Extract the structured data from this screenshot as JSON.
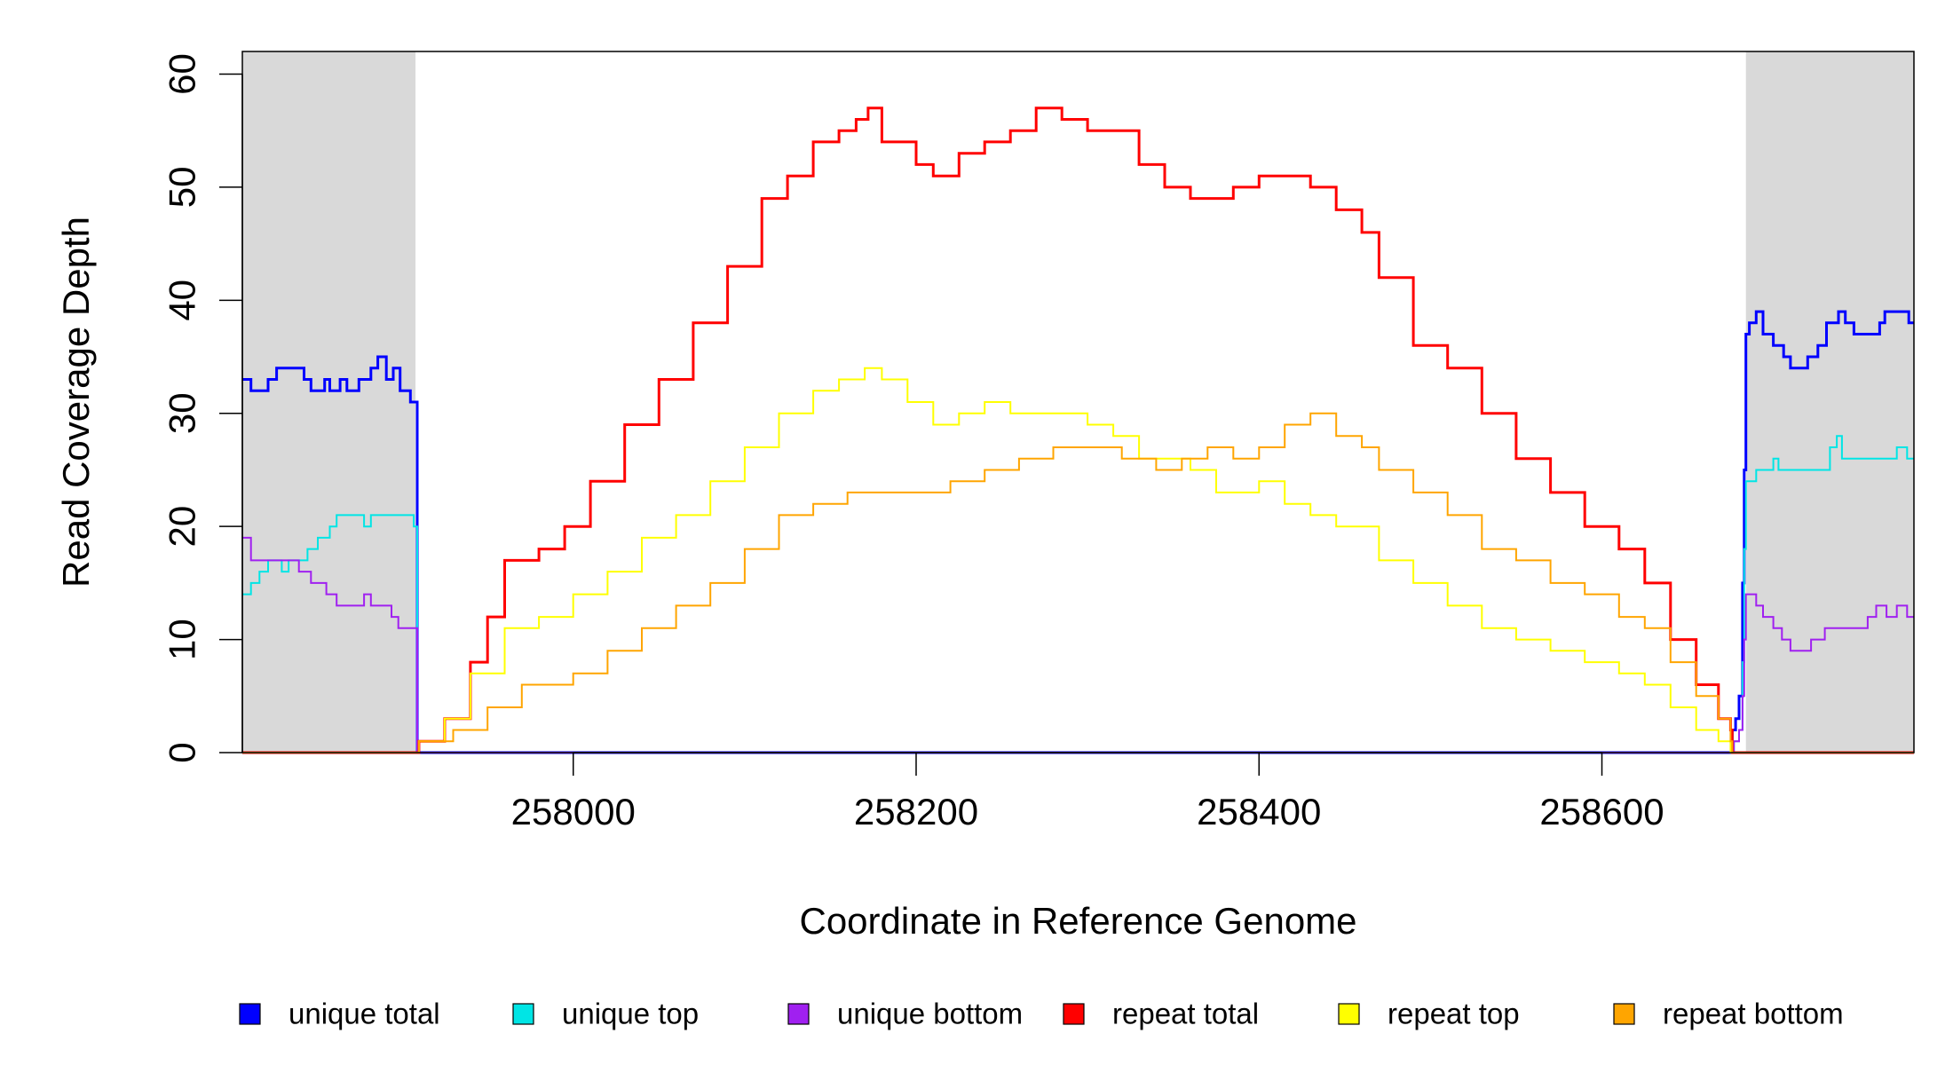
{
  "chart_data": {
    "type": "line",
    "title": "",
    "xlabel": "Coordinate in Reference Genome",
    "ylabel": "Read Coverage Depth",
    "xlim": [
      257807,
      258782
    ],
    "ylim": [
      0,
      62
    ],
    "x_ticks": [
      258000,
      258200,
      258400,
      258600
    ],
    "x_tick_labels": [
      "258000",
      "258200",
      "258400",
      "258600"
    ],
    "y_ticks": [
      0,
      10,
      20,
      30,
      40,
      50,
      60
    ],
    "y_tick_labels": [
      "0",
      "10",
      "20",
      "30",
      "40",
      "50",
      "60"
    ],
    "grid": false,
    "legend_position": "bottom",
    "shaded_regions": [
      {
        "from": 257807,
        "to": 257908,
        "color": "#d9d9d9"
      },
      {
        "from": 258684,
        "to": 258782,
        "color": "#d9d9d9"
      }
    ],
    "series": [
      {
        "name": "unique total",
        "color": "#0000ff",
        "width": 3,
        "points": [
          [
            257807,
            33
          ],
          [
            257812,
            32
          ],
          [
            257822,
            33
          ],
          [
            257827,
            34
          ],
          [
            257843,
            33
          ],
          [
            257847,
            32
          ],
          [
            257855,
            33
          ],
          [
            257858,
            32
          ],
          [
            257864,
            33
          ],
          [
            257868,
            32
          ],
          [
            257875,
            33
          ],
          [
            257882,
            34
          ],
          [
            257886,
            35
          ],
          [
            257891,
            33
          ],
          [
            257895,
            34
          ],
          [
            257899,
            32
          ],
          [
            257905,
            31
          ],
          [
            257908,
            31
          ],
          [
            257909,
            0
          ],
          [
            258675,
            0
          ],
          [
            258676,
            2
          ],
          [
            258678,
            3
          ],
          [
            258680,
            5
          ],
          [
            258682,
            15
          ],
          [
            258683,
            25
          ],
          [
            258684,
            37
          ],
          [
            258686,
            38
          ],
          [
            258690,
            39
          ],
          [
            258694,
            37
          ],
          [
            258700,
            36
          ],
          [
            258706,
            35
          ],
          [
            258710,
            34
          ],
          [
            258720,
            35
          ],
          [
            258726,
            36
          ],
          [
            258731,
            38
          ],
          [
            258738,
            39
          ],
          [
            258742,
            38
          ],
          [
            258747,
            37
          ],
          [
            258762,
            38
          ],
          [
            258765,
            39
          ],
          [
            258779,
            38
          ],
          [
            258782,
            38
          ]
        ]
      },
      {
        "name": "unique top",
        "color": "#00e5e5",
        "width": 2,
        "points": [
          [
            257807,
            14
          ],
          [
            257812,
            15
          ],
          [
            257817,
            16
          ],
          [
            257822,
            17
          ],
          [
            257830,
            16
          ],
          [
            257834,
            17
          ],
          [
            257840,
            17
          ],
          [
            257845,
            18
          ],
          [
            257851,
            19
          ],
          [
            257858,
            20
          ],
          [
            257862,
            21
          ],
          [
            257878,
            20
          ],
          [
            257882,
            21
          ],
          [
            257901,
            21
          ],
          [
            257907,
            20
          ],
          [
            257908,
            20
          ],
          [
            257909,
            0
          ],
          [
            258675,
            0
          ],
          [
            258677,
            1
          ],
          [
            258680,
            2
          ],
          [
            258682,
            8
          ],
          [
            258683,
            18
          ],
          [
            258684,
            24
          ],
          [
            258690,
            25
          ],
          [
            258700,
            26
          ],
          [
            258703,
            25
          ],
          [
            258733,
            27
          ],
          [
            258737,
            28
          ],
          [
            258740,
            26
          ],
          [
            258745,
            26
          ],
          [
            258772,
            27
          ],
          [
            258778,
            26
          ],
          [
            258782,
            26
          ]
        ]
      },
      {
        "name": "unique bottom",
        "color": "#a020f0",
        "width": 2,
        "points": [
          [
            257807,
            19
          ],
          [
            257812,
            17
          ],
          [
            257840,
            16
          ],
          [
            257847,
            15
          ],
          [
            257856,
            14
          ],
          [
            257862,
            13
          ],
          [
            257878,
            14
          ],
          [
            257882,
            13
          ],
          [
            257894,
            12
          ],
          [
            257898,
            11
          ],
          [
            257907,
            11
          ],
          [
            257908,
            11
          ],
          [
            257909,
            0
          ],
          [
            258675,
            0
          ],
          [
            258677,
            1
          ],
          [
            258680,
            2
          ],
          [
            258682,
            5
          ],
          [
            258683,
            10
          ],
          [
            258684,
            14
          ],
          [
            258690,
            13
          ],
          [
            258694,
            12
          ],
          [
            258700,
            11
          ],
          [
            258705,
            10
          ],
          [
            258710,
            9
          ],
          [
            258722,
            10
          ],
          [
            258730,
            11
          ],
          [
            258755,
            12
          ],
          [
            258760,
            13
          ],
          [
            258766,
            12
          ],
          [
            258772,
            13
          ],
          [
            258778,
            12
          ],
          [
            258782,
            12
          ]
        ]
      },
      {
        "name": "repeat total",
        "color": "#ff0000",
        "width": 3,
        "points": [
          [
            257807,
            0
          ],
          [
            257908,
            0
          ],
          [
            257910,
            1
          ],
          [
            257925,
            3
          ],
          [
            257940,
            8
          ],
          [
            257950,
            12
          ],
          [
            257960,
            17
          ],
          [
            257980,
            18
          ],
          [
            257995,
            20
          ],
          [
            258010,
            24
          ],
          [
            258030,
            29
          ],
          [
            258050,
            33
          ],
          [
            258070,
            38
          ],
          [
            258090,
            43
          ],
          [
            258110,
            49
          ],
          [
            258125,
            51
          ],
          [
            258140,
            54
          ],
          [
            258155,
            55
          ],
          [
            258165,
            56
          ],
          [
            258172,
            57
          ],
          [
            258180,
            54
          ],
          [
            258200,
            52
          ],
          [
            258210,
            51
          ],
          [
            258225,
            53
          ],
          [
            258240,
            54
          ],
          [
            258255,
            55
          ],
          [
            258270,
            57
          ],
          [
            258285,
            56
          ],
          [
            258300,
            55
          ],
          [
            258315,
            55
          ],
          [
            258330,
            52
          ],
          [
            258345,
            50
          ],
          [
            258360,
            49
          ],
          [
            258375,
            49
          ],
          [
            258385,
            50
          ],
          [
            258400,
            51
          ],
          [
            258415,
            51
          ],
          [
            258430,
            50
          ],
          [
            258445,
            48
          ],
          [
            258460,
            46
          ],
          [
            258470,
            42
          ],
          [
            258490,
            36
          ],
          [
            258510,
            34
          ],
          [
            258530,
            30
          ],
          [
            258550,
            26
          ],
          [
            258570,
            23
          ],
          [
            258590,
            20
          ],
          [
            258610,
            18
          ],
          [
            258625,
            15
          ],
          [
            258640,
            10
          ],
          [
            258655,
            6
          ],
          [
            258668,
            3
          ],
          [
            258675,
            2
          ],
          [
            258676,
            0
          ],
          [
            258782,
            0
          ]
        ]
      },
      {
        "name": "repeat top",
        "color": "#ffff00",
        "width": 2,
        "points": [
          [
            257807,
            0
          ],
          [
            257908,
            0
          ],
          [
            257910,
            1
          ],
          [
            257925,
            3
          ],
          [
            257940,
            7
          ],
          [
            257960,
            11
          ],
          [
            257980,
            12
          ],
          [
            258000,
            14
          ],
          [
            258020,
            16
          ],
          [
            258040,
            19
          ],
          [
            258060,
            21
          ],
          [
            258080,
            24
          ],
          [
            258100,
            27
          ],
          [
            258120,
            30
          ],
          [
            258140,
            32
          ],
          [
            258155,
            33
          ],
          [
            258170,
            34
          ],
          [
            258180,
            33
          ],
          [
            258195,
            31
          ],
          [
            258210,
            29
          ],
          [
            258225,
            30
          ],
          [
            258240,
            31
          ],
          [
            258255,
            30
          ],
          [
            258270,
            30
          ],
          [
            258285,
            30
          ],
          [
            258300,
            29
          ],
          [
            258315,
            28
          ],
          [
            258330,
            26
          ],
          [
            258345,
            26
          ],
          [
            258360,
            25
          ],
          [
            258375,
            23
          ],
          [
            258385,
            23
          ],
          [
            258400,
            24
          ],
          [
            258415,
            22
          ],
          [
            258430,
            21
          ],
          [
            258445,
            20
          ],
          [
            258460,
            20
          ],
          [
            258470,
            17
          ],
          [
            258490,
            15
          ],
          [
            258510,
            13
          ],
          [
            258530,
            11
          ],
          [
            258550,
            10
          ],
          [
            258570,
            9
          ],
          [
            258590,
            8
          ],
          [
            258610,
            7
          ],
          [
            258625,
            6
          ],
          [
            258640,
            4
          ],
          [
            258655,
            2
          ],
          [
            258668,
            1
          ],
          [
            258675,
            0
          ],
          [
            258782,
            0
          ]
        ]
      },
      {
        "name": "repeat bottom",
        "color": "#ffa500",
        "width": 2,
        "points": [
          [
            257807,
            0
          ],
          [
            257908,
            0
          ],
          [
            257910,
            1
          ],
          [
            257930,
            2
          ],
          [
            257950,
            4
          ],
          [
            257970,
            6
          ],
          [
            258000,
            7
          ],
          [
            258020,
            9
          ],
          [
            258040,
            11
          ],
          [
            258060,
            13
          ],
          [
            258080,
            15
          ],
          [
            258100,
            18
          ],
          [
            258120,
            21
          ],
          [
            258140,
            22
          ],
          [
            258160,
            23
          ],
          [
            258180,
            23
          ],
          [
            258200,
            23
          ],
          [
            258220,
            24
          ],
          [
            258240,
            25
          ],
          [
            258260,
            26
          ],
          [
            258280,
            27
          ],
          [
            258300,
            27
          ],
          [
            258320,
            26
          ],
          [
            258340,
            25
          ],
          [
            258355,
            26
          ],
          [
            258370,
            27
          ],
          [
            258385,
            26
          ],
          [
            258400,
            27
          ],
          [
            258415,
            29
          ],
          [
            258430,
            30
          ],
          [
            258445,
            28
          ],
          [
            258460,
            27
          ],
          [
            258470,
            25
          ],
          [
            258490,
            23
          ],
          [
            258510,
            21
          ],
          [
            258530,
            18
          ],
          [
            258550,
            17
          ],
          [
            258570,
            15
          ],
          [
            258590,
            14
          ],
          [
            258610,
            12
          ],
          [
            258625,
            11
          ],
          [
            258640,
            8
          ],
          [
            258655,
            5
          ],
          [
            258668,
            3
          ],
          [
            258675,
            1
          ],
          [
            258676,
            0
          ],
          [
            258782,
            0
          ]
        ]
      }
    ]
  }
}
